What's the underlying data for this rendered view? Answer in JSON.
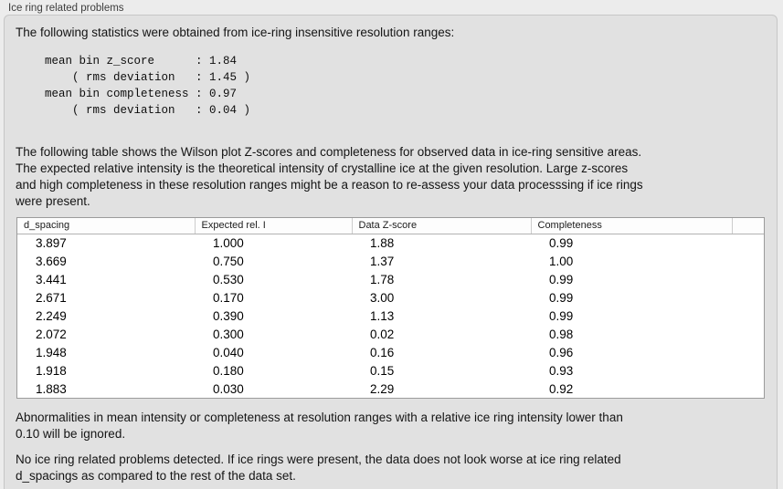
{
  "panel": {
    "title": "Ice ring related problems",
    "intro": "The following statistics were obtained from ice-ring insensitive resolution ranges:",
    "stats_block": "mean bin z_score      : 1.84\n    ( rms deviation   : 1.45 )\nmean bin completeness : 0.97\n    ( rms deviation   : 0.04 )",
    "table_intro": "The following table shows the Wilson plot Z-scores and completeness for observed data in ice-ring sensitive areas.\nThe expected relative intensity is the theoretical intensity of crystalline ice at the given resolution. Large z-scores\nand high completeness in these resolution ranges might be a reason to re-assess your data processsing if ice rings\nwere present.",
    "note_ignore": "Abnormalities in mean intensity or completeness at resolution ranges with a relative ice ring intensity lower than\n0.10 will be ignored.",
    "conclusion": "No ice ring related problems detected. If ice rings were present, the data does not look worse at ice ring related\nd_spacings as compared to the rest of the data set."
  },
  "table": {
    "columns": [
      "d_spacing",
      "Expected rel. I",
      "Data Z-score",
      "Completeness"
    ],
    "rows": [
      [
        "3.897",
        "1.000",
        "1.88",
        "0.99"
      ],
      [
        "3.669",
        "0.750",
        "1.37",
        "1.00"
      ],
      [
        "3.441",
        "0.530",
        "1.78",
        "0.99"
      ],
      [
        "2.671",
        "0.170",
        "3.00",
        "0.99"
      ],
      [
        "2.249",
        "0.390",
        "1.13",
        "0.99"
      ],
      [
        "2.072",
        "0.300",
        "0.02",
        "0.98"
      ],
      [
        "1.948",
        "0.040",
        "0.16",
        "0.96"
      ],
      [
        "1.918",
        "0.180",
        "0.15",
        "0.93"
      ],
      [
        "1.883",
        "0.030",
        "2.29",
        "0.92"
      ]
    ]
  },
  "colors": {
    "page_bg": "#ececec",
    "panel_bg": "#e1e1e1",
    "panel_border": "#c6c6c6",
    "table_border": "#9b9b9b",
    "text": "#121212"
  }
}
